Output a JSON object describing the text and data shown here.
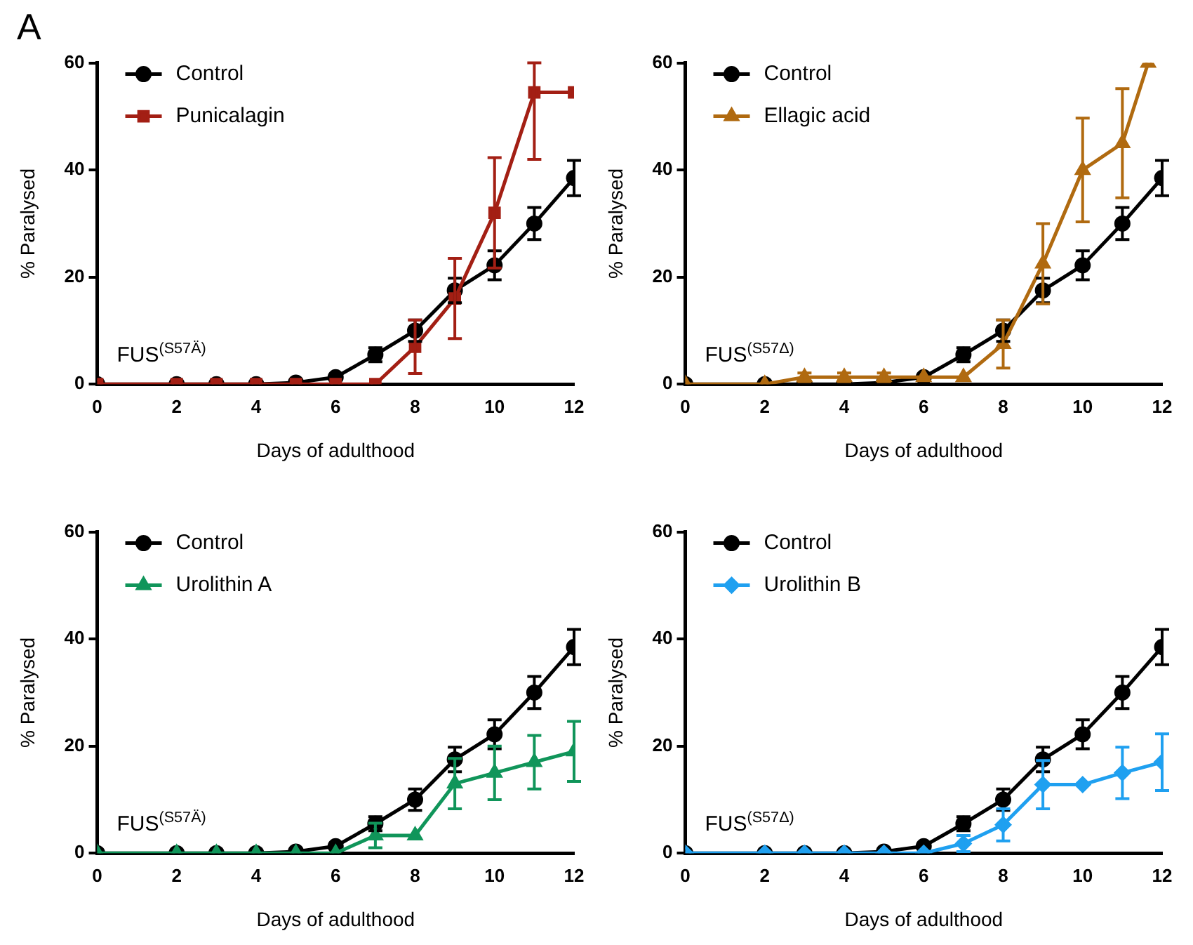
{
  "chart_data": [
    {
      "type": "line",
      "title": "A",
      "xlabel": "Days of adulthood",
      "ylabel": "% Paralysed",
      "annotations": [
        "FUS$^{(S57Ä)}$"
      ],
      "x": [
        0,
        2,
        3,
        4,
        5,
        6,
        7,
        8,
        9,
        10,
        11,
        12
      ],
      "xlim": [
        0,
        12
      ],
      "xticks": [
        0,
        2,
        4,
        6,
        8,
        10,
        12
      ],
      "ylim": [
        0,
        60
      ],
      "yticks": [
        0,
        20,
        40,
        60
      ],
      "grid": false,
      "legend": "top left",
      "line_style": "solid",
      "series": [
        {
          "name": "Control",
          "color": "#000000",
          "marker": "circle",
          "values": [
            0,
            0,
            0,
            0,
            0.3,
            1.3,
            5.5,
            10,
            17.5,
            22.2,
            30,
            38.5
          ],
          "errors": [
            null,
            null,
            null,
            null,
            null,
            null,
            1.3,
            2,
            2.3,
            2.7,
            3,
            3.3
          ]
        },
        {
          "name": "Punicalagin",
          "color": "#a31f14",
          "marker": "square",
          "values": [
            0,
            0,
            0,
            0,
            0,
            0,
            0,
            7,
            16,
            32,
            54.5,
            54.5
          ],
          "errors": [
            null,
            null,
            null,
            null,
            null,
            null,
            null,
            5,
            7.5,
            10.3,
            [
              42,
              60
            ],
            null
          ]
        }
      ]
    },
    {
      "type": "line",
      "xlabel": "Days of adulthood",
      "ylabel": "% Paralysed",
      "annotations": [
        "FUS$^{(S57Δ)}$"
      ],
      "x": [
        0,
        2,
        3,
        4,
        5,
        6,
        7,
        8,
        9,
        10,
        11,
        12
      ],
      "xlim": [
        0,
        12
      ],
      "xticks": [
        0,
        2,
        4,
        6,
        8,
        10,
        12
      ],
      "ylim": [
        0,
        60
      ],
      "yticks": [
        0,
        20,
        40,
        60
      ],
      "grid": false,
      "legend": "top left",
      "line_style": "solid",
      "series": [
        {
          "name": "Control",
          "color": "#000000",
          "marker": "circle",
          "values": [
            0,
            0,
            0,
            0,
            0.3,
            1.3,
            5.5,
            10,
            17.5,
            22.2,
            30,
            38.5
          ],
          "errors": [
            null,
            null,
            null,
            null,
            null,
            null,
            1.3,
            2,
            2.3,
            2.7,
            3,
            3.3
          ]
        },
        {
          "name": "Ellagic acid",
          "color": "#b06a10",
          "marker": "triangle",
          "x": [
            0,
            2,
            3,
            4,
            5,
            6,
            7,
            8,
            9,
            10,
            11,
            11.65
          ],
          "values": [
            0,
            0,
            1.3,
            1.3,
            1.3,
            1.3,
            1.3,
            7.5,
            22.5,
            40,
            45,
            60
          ],
          "errors": [
            null,
            null,
            0.8,
            0.8,
            0.8,
            null,
            null,
            4.5,
            7.5,
            9.7,
            10.2,
            null
          ]
        }
      ]
    },
    {
      "type": "line",
      "xlabel": "Days of adulthood",
      "ylabel": "% Paralysed",
      "annotations": [
        "FUS$^{(S57Ä)}$"
      ],
      "x": [
        0,
        2,
        3,
        4,
        5,
        6,
        7,
        8,
        9,
        10,
        11,
        12
      ],
      "xlim": [
        0,
        12
      ],
      "xticks": [
        0,
        2,
        4,
        6,
        8,
        10,
        12
      ],
      "ylim": [
        0,
        60
      ],
      "yticks": [
        0,
        20,
        40,
        60
      ],
      "grid": false,
      "legend": "top left",
      "line_style": "solid",
      "series": [
        {
          "name": "Control",
          "color": "#000000",
          "marker": "circle",
          "values": [
            0,
            0,
            0,
            0,
            0.3,
            1.3,
            5.5,
            10,
            17.5,
            22.2,
            30,
            38.5
          ],
          "errors": [
            null,
            null,
            null,
            null,
            null,
            null,
            1.3,
            2,
            2.3,
            2.7,
            3,
            3.3
          ]
        },
        {
          "name": "Urolithin A",
          "color": "#10955a",
          "marker": "triangle",
          "values": [
            0,
            0,
            0,
            0,
            0,
            0,
            3.3,
            3.3,
            13,
            15,
            17,
            19
          ],
          "errors": [
            null,
            null,
            null,
            null,
            null,
            null,
            2.3,
            null,
            4.7,
            5,
            5,
            5.6
          ]
        }
      ]
    },
    {
      "type": "line",
      "xlabel": "Days of adulthood",
      "ylabel": "% Paralysed",
      "annotations": [
        "FUS$^{(S57Δ)}$"
      ],
      "x": [
        0,
        2,
        3,
        4,
        5,
        6,
        7,
        8,
        9,
        10,
        11,
        12
      ],
      "xlim": [
        0,
        12
      ],
      "xticks": [
        0,
        2,
        4,
        6,
        8,
        10,
        12
      ],
      "ylim": [
        0,
        60
      ],
      "yticks": [
        0,
        20,
        40,
        60
      ],
      "grid": false,
      "legend": "top left",
      "line_style": "solid",
      "series": [
        {
          "name": "Control",
          "color": "#000000",
          "marker": "circle",
          "values": [
            0,
            0,
            0,
            0,
            0.3,
            1.3,
            5.5,
            10,
            17.5,
            22.2,
            30,
            38.5
          ],
          "errors": [
            null,
            null,
            null,
            null,
            null,
            null,
            1.3,
            2,
            2.3,
            2.7,
            3,
            3.3
          ]
        },
        {
          "name": "Urolithin B",
          "color": "#1fa0f0",
          "marker": "diamond",
          "values": [
            0,
            0,
            0,
            0,
            0,
            0,
            1.8,
            5.3,
            12.8,
            12.8,
            15,
            17
          ],
          "errors": [
            null,
            null,
            null,
            null,
            null,
            null,
            1.5,
            3,
            4.5,
            null,
            4.8,
            5.3
          ]
        }
      ]
    }
  ]
}
